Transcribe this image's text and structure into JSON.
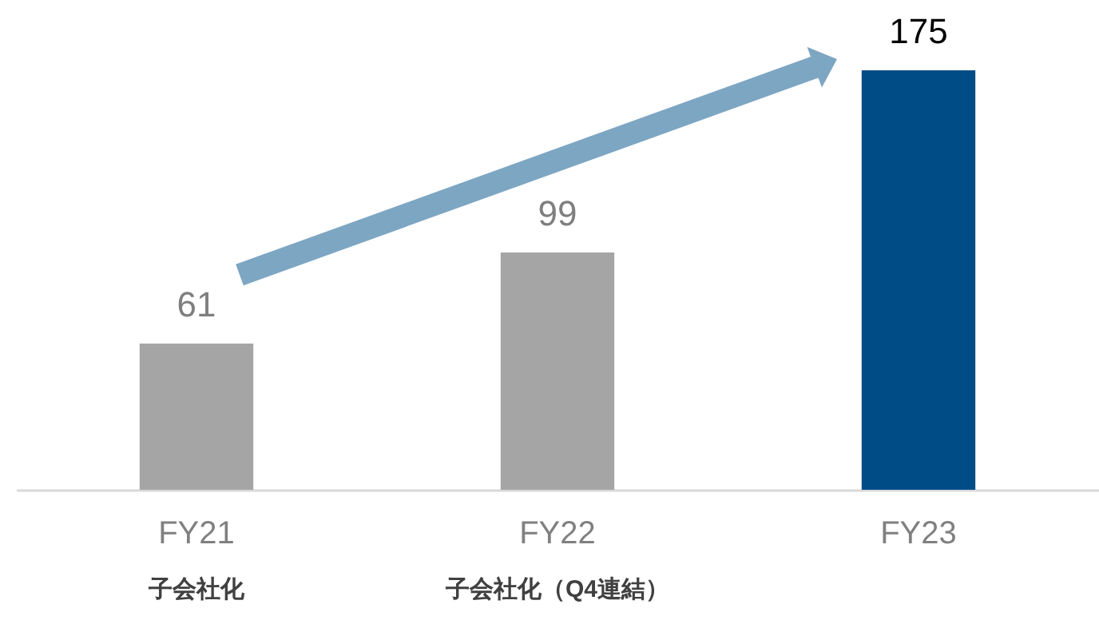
{
  "chart_data": {
    "type": "bar",
    "categories": [
      "FY21",
      "FY22",
      "FY23"
    ],
    "values": [
      61,
      99,
      175
    ],
    "colors": [
      "#a5a5a5",
      "#a5a5a5",
      "#004c87"
    ],
    "data_labels": true,
    "annotations": [
      "子会社化",
      "子会社化（Q4連結）"
    ]
  }
}
